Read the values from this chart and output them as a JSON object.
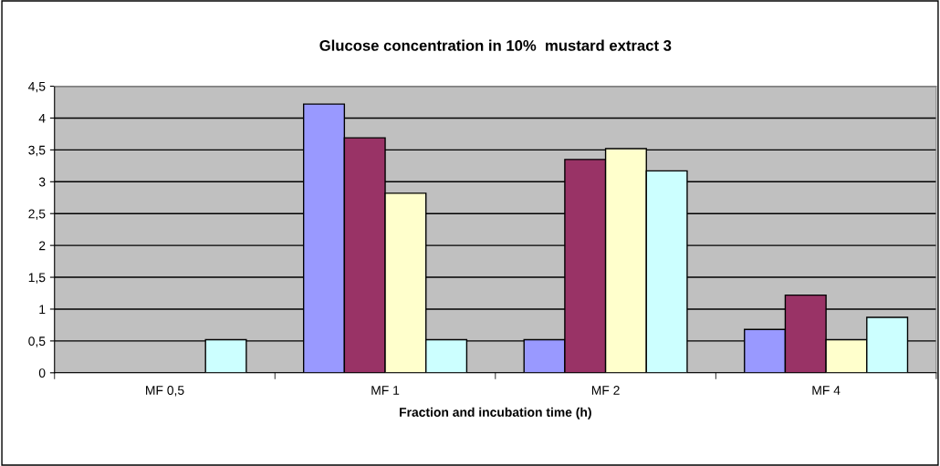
{
  "chart_data": {
    "type": "bar",
    "title": "Glucose concentration in 10%  mustard extract 3",
    "xlabel": "Fraction and incubation time (h)",
    "categories": [
      "MF 0,5",
      "MF 1",
      "MF 2",
      "MF 4"
    ],
    "series": [
      {
        "color": "#9999ff",
        "values": [
          null,
          4.22,
          0.52,
          0.68
        ]
      },
      {
        "color": "#993366",
        "values": [
          null,
          3.69,
          3.35,
          1.22
        ]
      },
      {
        "color": "#ffffcc",
        "values": [
          null,
          2.82,
          3.52,
          0.52
        ]
      },
      {
        "color": "#ccffff",
        "values": [
          0.52,
          0.52,
          3.17,
          0.87
        ]
      }
    ],
    "ylim": [
      0,
      4.5
    ],
    "yticks": [
      {
        "value": 0,
        "label": "0"
      },
      {
        "value": 0.5,
        "label": "0,5"
      },
      {
        "value": 1,
        "label": "1"
      },
      {
        "value": 1.5,
        "label": "1,5"
      },
      {
        "value": 2,
        "label": "2"
      },
      {
        "value": 2.5,
        "label": "2,5"
      },
      {
        "value": 3,
        "label": "3"
      },
      {
        "value": 3.5,
        "label": "3,5"
      },
      {
        "value": 4,
        "label": "4"
      },
      {
        "value": 4.5,
        "label": "4,5"
      }
    ],
    "grid": "y",
    "legend": false
  }
}
